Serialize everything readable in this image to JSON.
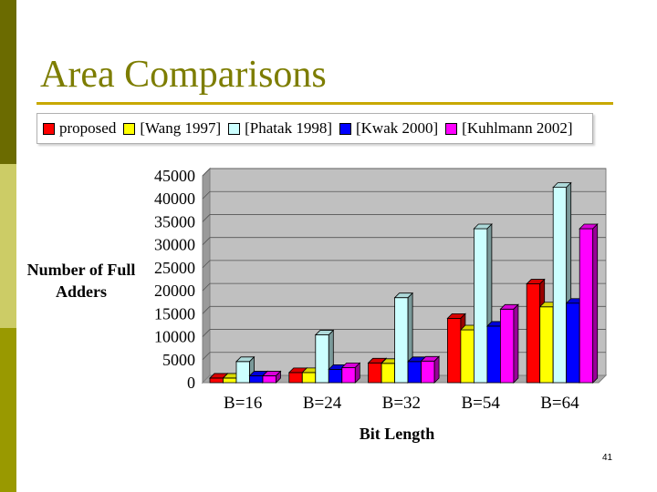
{
  "slide": {
    "title": "Area Comparisons",
    "page_number": "41"
  },
  "colors": {
    "sidebar": [
      "#6b6b00",
      "#cccc66",
      "#999900"
    ],
    "title": "#7d7d00",
    "rule": "#c8a800",
    "plot_wall": "#c0c0c0"
  },
  "chart_data": {
    "type": "bar",
    "style": "3d-clustered",
    "xlabel": "Bit Length",
    "ylabel": "Number of Full Adders",
    "ylim": [
      0,
      45000
    ],
    "yticks": [
      0,
      5000,
      10000,
      15000,
      20000,
      25000,
      30000,
      35000,
      40000,
      45000
    ],
    "grid": true,
    "legend_position": "top",
    "categories": [
      "B=16",
      "B=24",
      "B=32",
      "B=54",
      "B=64"
    ],
    "series": [
      {
        "name": "proposed",
        "color": "#ff0000",
        "values": [
          1000,
          2200,
          4300,
          14000,
          21500
        ]
      },
      {
        "name": "[Wang 1997]",
        "color": "#ffff00",
        "values": [
          1000,
          2200,
          4200,
          11500,
          16500
        ]
      },
      {
        "name": "[Phatak 1998]",
        "color": "#ccffff",
        "values": [
          4600,
          10400,
          18500,
          33500,
          42500
        ]
      },
      {
        "name": "[Kwak 2000]",
        "color": "#0000ff",
        "values": [
          1500,
          2900,
          4600,
          12300,
          17300
        ]
      },
      {
        "name": "[Kuhlmann 2002]",
        "color": "#ff00ff",
        "values": [
          1500,
          3300,
          4700,
          16000,
          33500
        ]
      }
    ]
  }
}
